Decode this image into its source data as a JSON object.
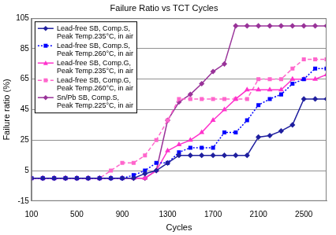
{
  "chart_data": {
    "type": "line",
    "title": "Failure Ratio vs TCT Cycles",
    "x_label": "Cycles",
    "y_label": "Failure ratio (%)",
    "x": [
      100,
      200,
      300,
      400,
      500,
      600,
      700,
      800,
      900,
      1000,
      1100,
      1200,
      1300,
      1400,
      1500,
      1600,
      1700,
      1800,
      1900,
      2000,
      2100,
      2200,
      2300,
      2400,
      2500,
      2600,
      2700
    ],
    "series": [
      {
        "name": "Lead-free SB, Comp.S, Peak Temp.235°C, in air",
        "color": "#1f1f9f",
        "marker": "diamond",
        "line_style": "solid",
        "values": [
          0,
          0,
          0,
          0,
          0,
          0,
          0,
          0,
          0,
          0,
          3,
          5,
          10,
          15,
          15,
          15,
          15,
          15,
          15,
          15,
          27,
          28,
          31,
          35,
          52,
          52,
          52
        ]
      },
      {
        "name": "Lead-free SB, Comp.S, Peak Temp.260°C, in air",
        "color": "#0000ff",
        "marker": "square",
        "line_style": "dotted",
        "values": [
          0,
          0,
          0,
          0,
          0,
          0,
          0,
          0,
          0,
          2,
          5,
          10,
          10,
          17,
          20,
          20,
          20,
          30,
          30,
          38,
          48,
          52,
          55,
          62,
          65,
          72,
          72
        ]
      },
      {
        "name": "Lead-free SB, Comp.G, Peak Temp.235°C, in air",
        "color": "#ff33cc",
        "marker": "triangle",
        "line_style": "solid",
        "values": [
          0,
          0,
          0,
          0,
          0,
          0,
          0,
          0,
          0,
          0,
          0,
          5,
          18,
          22,
          25,
          30,
          38,
          45,
          52,
          58,
          58,
          58,
          58,
          65,
          65,
          65,
          68
        ]
      },
      {
        "name": "Lead-free SB, Comp.G, Peak Temp.260°C, in air",
        "color": "#ff66cc",
        "marker": "square",
        "line_style": "dashed",
        "values": [
          0,
          0,
          0,
          0,
          0,
          0,
          0,
          5,
          10,
          10,
          15,
          25,
          38,
          52,
          52,
          52,
          52,
          52,
          52,
          52,
          65,
          65,
          65,
          72,
          78,
          78,
          78
        ]
      },
      {
        "name": "Sn/Pb SB, Comp.S, Peak Temp.225°C, in air",
        "color": "#993399",
        "marker": "diamond",
        "line_style": "solid",
        "values": [
          0,
          0,
          0,
          0,
          0,
          0,
          0,
          0,
          0,
          0,
          0,
          5,
          38,
          50,
          55,
          62,
          70,
          75,
          100,
          100,
          100,
          100,
          100,
          100,
          100,
          100,
          100
        ]
      }
    ],
    "xlim": [
      100,
      2700
    ],
    "xticks": [
      100,
      500,
      900,
      1300,
      1700,
      2100,
      2500
    ],
    "ylim": [
      -15,
      105
    ],
    "yticks": [
      -15,
      5,
      25,
      45,
      65,
      85,
      105
    ],
    "grid": true,
    "legend": "upper left"
  }
}
